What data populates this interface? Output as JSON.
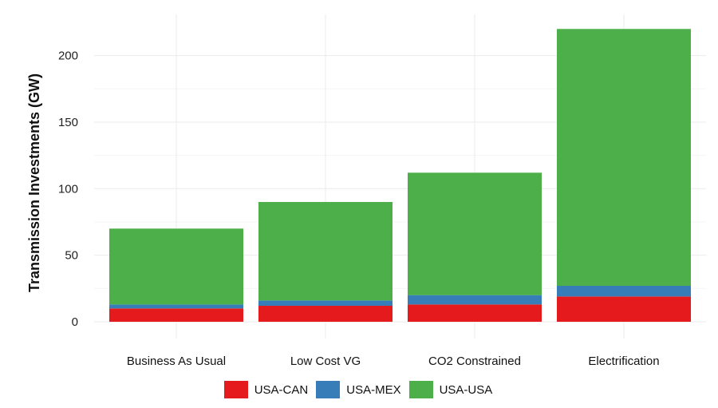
{
  "chart_data": {
    "type": "bar",
    "stacked": true,
    "categories": [
      "Business As Usual",
      "Low Cost VG",
      "CO2 Constrained",
      "Electrification"
    ],
    "series": [
      {
        "name": "USA-CAN",
        "color": "#e41a1c",
        "values": [
          10,
          12,
          13,
          19
        ]
      },
      {
        "name": "USA-MEX",
        "color": "#377eb8",
        "values": [
          3,
          4,
          7,
          8
        ]
      },
      {
        "name": "USA-USA",
        "color": "#4daf4a",
        "values": [
          57,
          74,
          92,
          193
        ]
      }
    ],
    "totals": [
      70,
      90,
      112,
      220
    ],
    "title": "",
    "xlabel": "",
    "ylabel": "Transmission Investments (GW)",
    "ylim": [
      -10,
      227
    ],
    "yticks": [
      0,
      50,
      100,
      150,
      200
    ],
    "grid": true,
    "legend_position": "bottom"
  }
}
